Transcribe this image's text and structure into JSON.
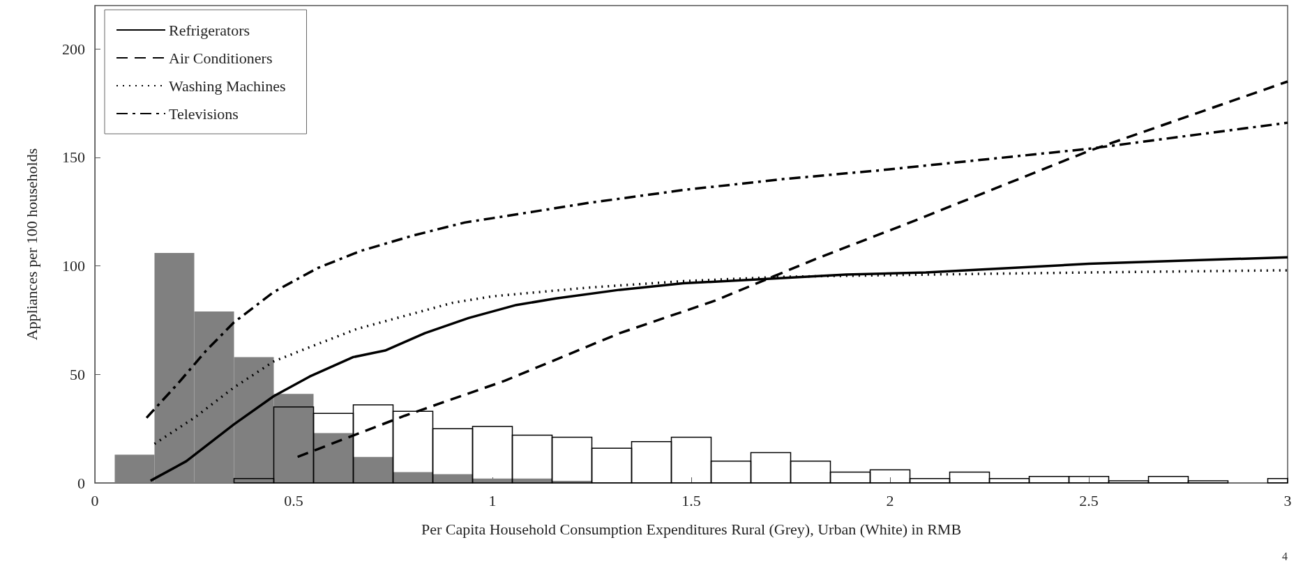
{
  "chart_data": {
    "type": "line",
    "xlabel": "Per Capita Household Consumption Expenditures Rural (Grey), Urban (White) in RMB",
    "ylabel": "Appliances per 100 households",
    "annotations": [
      "4"
    ],
    "xlim": [
      0,
      3
    ],
    "xticks": [
      0,
      0.5,
      1,
      1.5,
      2,
      2.5,
      3
    ],
    "ylim": [
      0,
      220
    ],
    "yticks": [
      0,
      50,
      100,
      150,
      200
    ],
    "grid": false,
    "legend": "top left",
    "marker": "none",
    "series": [
      {
        "type": "histogram",
        "color": "#808080",
        "bins": [
          0.05,
          0.15,
          0.25,
          0.35,
          0.45,
          0.55,
          0.65,
          0.75,
          0.85,
          0.95,
          1.05,
          1.15,
          1.25
        ],
        "values": [
          13,
          106,
          79,
          58,
          41,
          23,
          12,
          5,
          4,
          2,
          2,
          1
        ]
      },
      {
        "type": "histogram",
        "color": "#000000",
        "bins": [
          0.35,
          0.45,
          0.55,
          0.65,
          0.75,
          0.85,
          0.95,
          1.05,
          1.15,
          1.25,
          1.35,
          1.45,
          1.55,
          1.65,
          1.75,
          1.85,
          1.95,
          2.05,
          2.15,
          2.25,
          2.35,
          2.45,
          2.55,
          2.65,
          2.75,
          2.85,
          2.95,
          3.0
        ],
        "values": [
          2,
          35,
          32,
          36,
          33,
          25,
          26,
          22,
          21,
          16,
          19,
          21,
          10,
          14,
          10,
          5,
          6,
          2,
          5,
          2,
          3,
          3,
          1,
          3,
          1,
          0,
          2
        ]
      },
      {
        "type": "line",
        "name": "Refrigerators",
        "color": "#000000",
        "line_style": "solid",
        "x": [
          0.14,
          0.23,
          0.35,
          0.45,
          0.54,
          0.65,
          0.73,
          0.83,
          0.94,
          1.06,
          1.16,
          1.32,
          1.48,
          1.69,
          1.89,
          2.09,
          2.5,
          3.0
        ],
        "values": [
          1,
          10,
          27,
          40,
          49,
          58,
          61,
          69,
          76,
          82,
          85,
          89,
          92,
          94,
          96,
          97,
          101,
          104
        ]
      },
      {
        "type": "line",
        "name": "Air Conditioners",
        "color": "#000000",
        "line_style": "dashed",
        "x": [
          0.51,
          0.78,
          1.03,
          1.32,
          1.56,
          1.81,
          2.05,
          2.5,
          3.0
        ],
        "values": [
          12,
          31,
          47,
          69,
          84,
          103,
          120,
          153,
          185
        ]
      },
      {
        "type": "line",
        "name": "Washing Machines",
        "color": "#000000",
        "line_style": "dotted",
        "x": [
          0.15,
          0.25,
          0.35,
          0.45,
          0.56,
          0.66,
          0.78,
          0.9,
          1.0,
          1.24,
          1.48,
          1.73,
          2.09,
          2.5,
          3.0
        ],
        "values": [
          18,
          30,
          44,
          56,
          64,
          71,
          77,
          83,
          86,
          90,
          93,
          95,
          96,
          97,
          98
        ]
      },
      {
        "type": "line",
        "name": "Televisions",
        "color": "#000000",
        "line_style": "dashdot",
        "x": [
          0.13,
          0.21,
          0.28,
          0.35,
          0.45,
          0.56,
          0.67,
          0.8,
          0.93,
          1.0,
          1.24,
          1.48,
          1.73,
          1.97,
          2.5,
          3.0
        ],
        "values": [
          30,
          46,
          61,
          74,
          88,
          99,
          107,
          114,
          120,
          122,
          129,
          135,
          140,
          144,
          154,
          166
        ]
      }
    ]
  }
}
